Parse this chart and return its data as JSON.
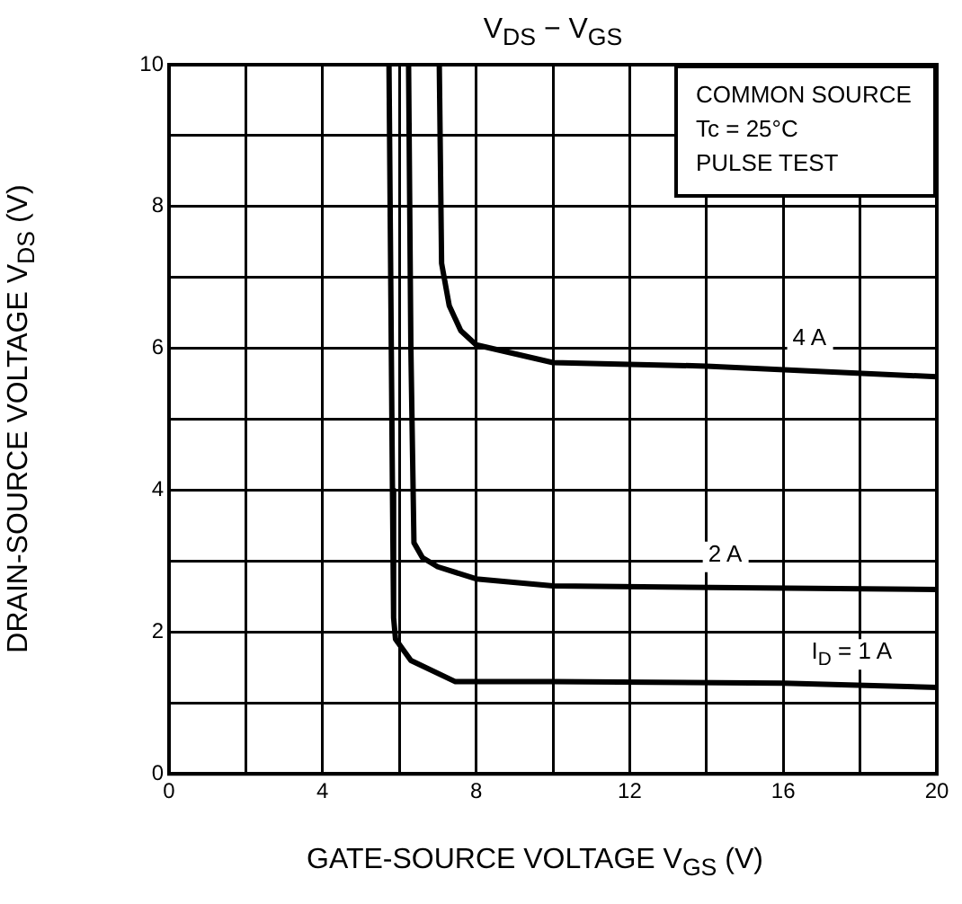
{
  "chart_data": {
    "type": "line",
    "title": "V$_{DS}$ − V$_{GS}$",
    "xlabel": "GATE-SOURCE VOLTAGE  V$_{GS}$  (V)",
    "ylabel": "DRAIN-SOURCE VOLTAGE  V$_{DS}$  (V)",
    "annotations": [
      "COMMON SOURCE",
      "Tc = 25°C",
      "PULSE TEST"
    ],
    "series": [
      {
        "name": "4 A",
        "color": "#000000",
        "x": [
          7.04,
          7.1,
          7.3,
          7.6,
          8,
          10,
          14,
          20
        ],
        "values": [
          10,
          7.2,
          6.6,
          6.25,
          6.05,
          5.8,
          5.75,
          5.6
        ]
      },
      {
        "name": "2 A",
        "color": "#000000",
        "x": [
          6.24,
          6.3,
          6.38,
          6.6,
          7.0,
          8,
          10,
          20
        ],
        "values": [
          10,
          6,
          3.26,
          3.05,
          2.92,
          2.75,
          2.65,
          2.6
        ]
      },
      {
        "name": "I$_{D}$ = 1 A",
        "color": "#000000",
        "x": [
          5.73,
          5.82,
          5.85,
          5.9,
          6.3,
          7.46,
          10,
          16,
          20
        ],
        "values": [
          10,
          4,
          2.2,
          1.9,
          1.6,
          1.3,
          1.3,
          1.28,
          1.22
        ]
      }
    ],
    "xlim": [
      0,
      20
    ],
    "xticks": [
      0,
      {
        "value": 2,
        "label": null
      },
      4,
      {
        "value": 6,
        "label": null
      },
      8,
      {
        "value": 10,
        "label": null
      },
      12,
      {
        "value": 14,
        "label": null
      },
      16,
      {
        "value": 18,
        "label": null
      },
      20
    ],
    "ylim": [
      0,
      10
    ],
    "yticks": [
      0,
      {
        "value": 1,
        "label": null
      },
      2,
      {
        "value": 3,
        "label": null
      },
      4,
      {
        "value": 5,
        "label": null
      },
      6,
      {
        "value": 7,
        "label": null
      },
      8,
      {
        "value": 9,
        "label": null
      },
      10
    ],
    "grid": true,
    "legend": false,
    "marker": "none",
    "line_style": "solid"
  }
}
